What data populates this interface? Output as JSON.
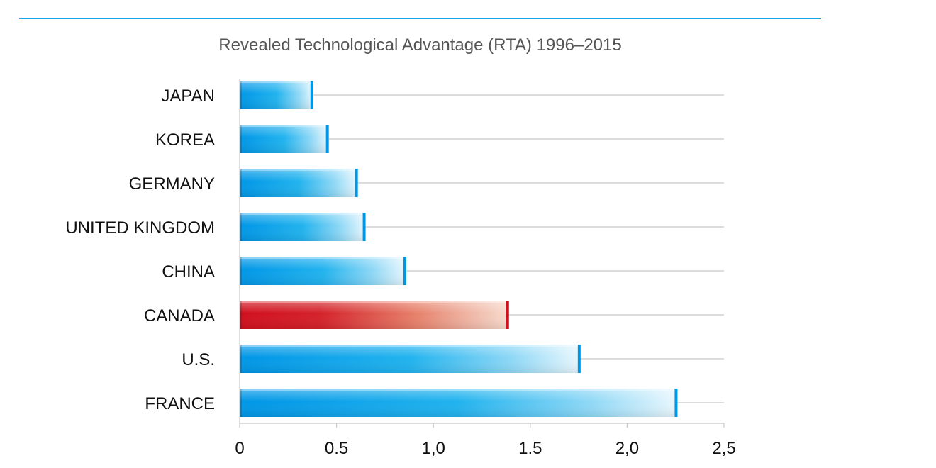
{
  "chart_data": {
    "type": "bar",
    "orientation": "horizontal",
    "title": "Revealed Technological Advantage (RTA) 1996–2015",
    "categories": [
      "JAPAN",
      "KOREA",
      "GERMANY",
      "UNITED KINGDOM",
      "CHINA",
      "CANADA",
      "U.S.",
      "FRANCE"
    ],
    "values": [
      0.38,
      0.46,
      0.61,
      0.65,
      0.86,
      1.39,
      1.76,
      2.26
    ],
    "highlight_category": "CANADA",
    "xlim": [
      0,
      2.5
    ],
    "xticks": [
      0,
      0.5,
      1.0,
      1.5,
      2.0,
      2.5
    ],
    "xtick_labels": [
      "0",
      "0.5",
      "1,0",
      "1.5",
      "2,0",
      "2,5"
    ],
    "xlabel": "",
    "ylabel": "",
    "grid": true,
    "colors": {
      "bar_base": "#0096e6",
      "bar_mid": "#5cc6f2",
      "bar_end": "#e8f6fd",
      "highlight_base": "#d0101e",
      "highlight_mid": "#e46a52",
      "highlight_end": "#f6dccf",
      "rule": "#1aa7e0",
      "grid": "#c8c8c8"
    }
  }
}
